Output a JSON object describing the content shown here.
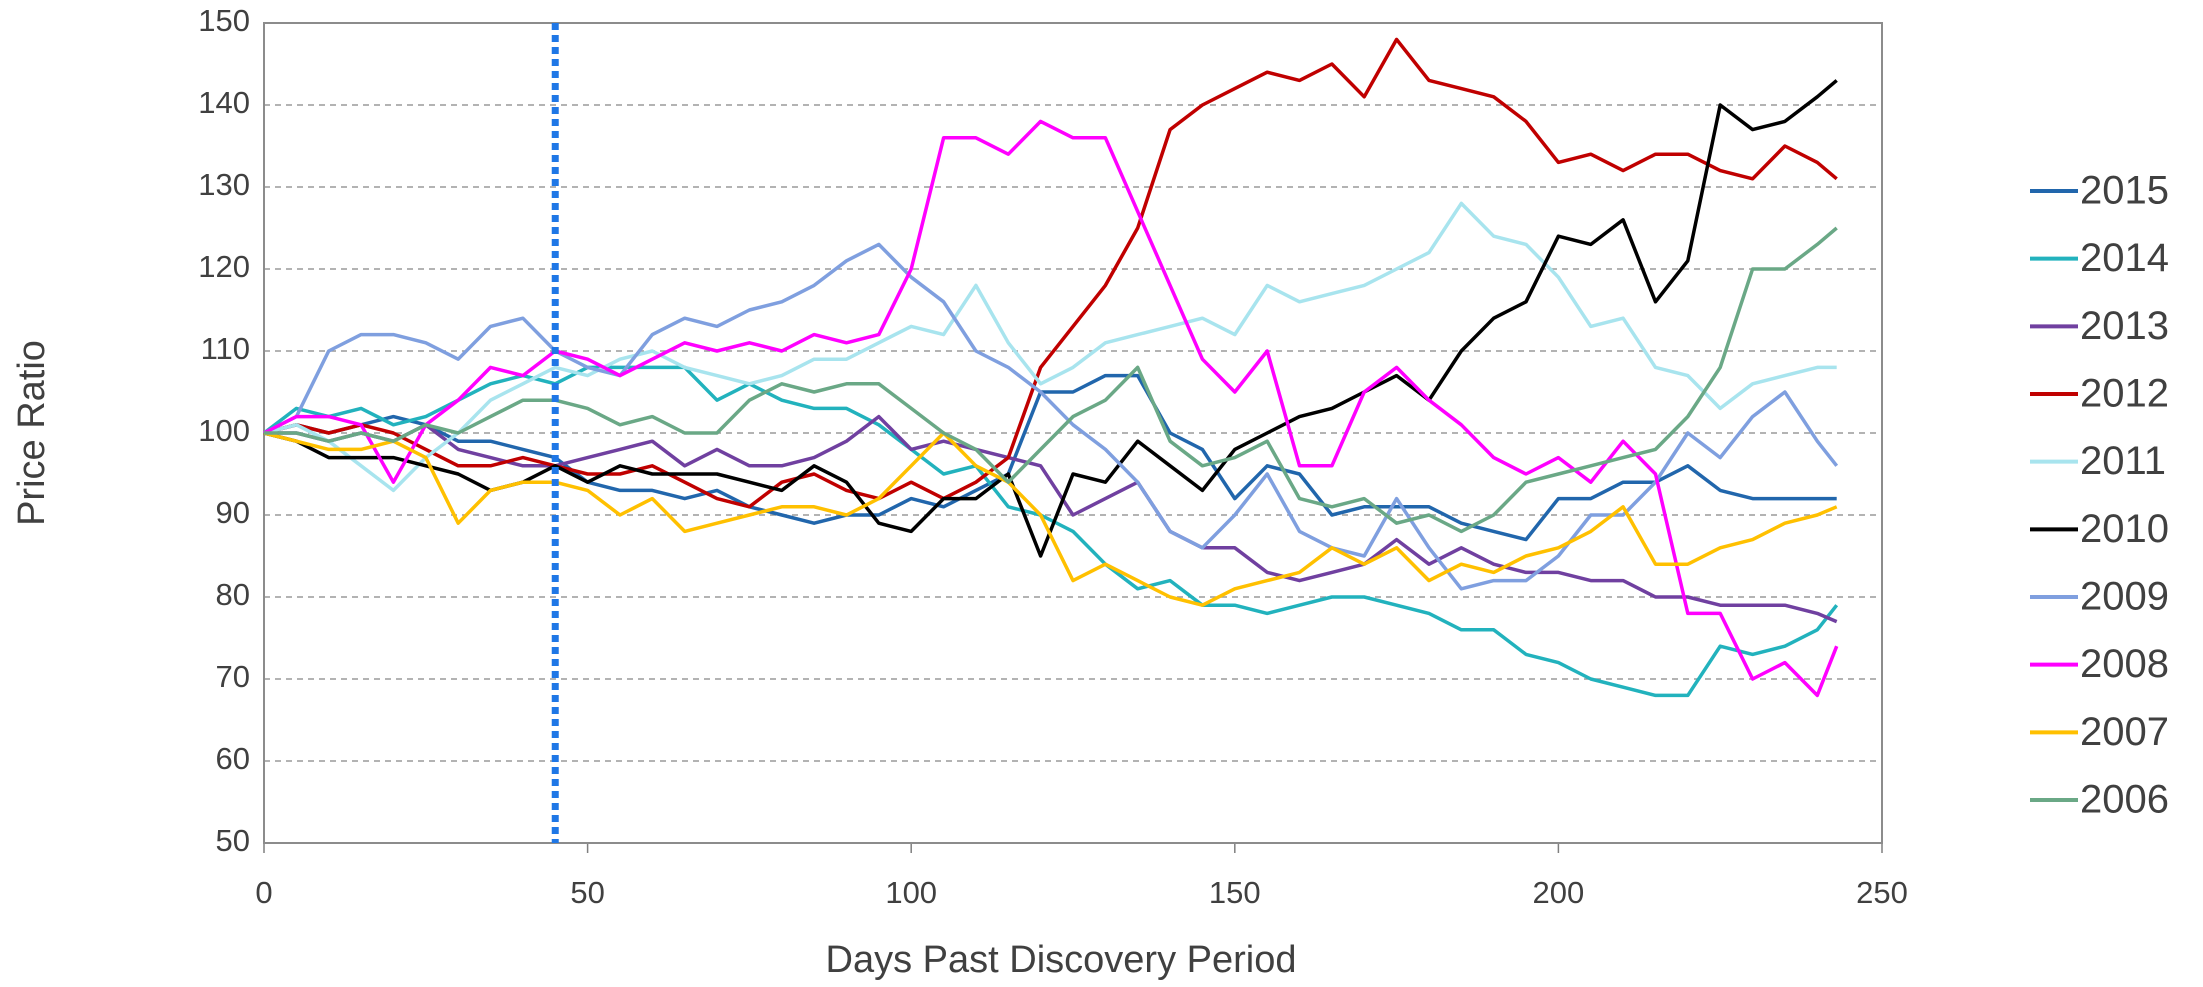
{
  "chart_data": {
    "type": "line",
    "xlabel": "Days Past Discovery Period",
    "ylabel": "Price Ratio",
    "xlim": [
      0,
      250
    ],
    "xticks": [
      0,
      50,
      100,
      150,
      200,
      250
    ],
    "ylim": [
      50,
      150
    ],
    "yticks": [
      50,
      60,
      70,
      80,
      90,
      100,
      110,
      120,
      130,
      140,
      150
    ],
    "grid": true,
    "legend": "right",
    "vline": {
      "x": 45,
      "color": "#1f77e6"
    },
    "x": [
      0,
      5,
      10,
      15,
      20,
      25,
      30,
      35,
      40,
      45,
      50,
      55,
      60,
      65,
      70,
      75,
      80,
      85,
      90,
      95,
      100,
      105,
      110,
      115,
      120,
      125,
      130,
      135,
      140,
      145,
      150,
      155,
      160,
      165,
      170,
      175,
      180,
      185,
      190,
      195,
      200,
      205,
      210,
      215,
      220,
      225,
      230,
      235,
      240,
      243
    ],
    "series": [
      {
        "name": "2015",
        "color": "#2166ac",
        "values": [
          100,
          101,
          100,
          101,
          102,
          101,
          99,
          99,
          98,
          97,
          94,
          93,
          93,
          92,
          93,
          91,
          90,
          89,
          90,
          90,
          92,
          91,
          93,
          95,
          105,
          105,
          107,
          107,
          100,
          98,
          92,
          96,
          95,
          90,
          91,
          91,
          91,
          89,
          88,
          87,
          92,
          92,
          94,
          94,
          96,
          93,
          92,
          92,
          92,
          92
        ]
      },
      {
        "name": "2014",
        "color": "#22b2bd",
        "values": [
          100,
          103,
          102,
          103,
          101,
          102,
          104,
          106,
          107,
          106,
          108,
          108,
          108,
          108,
          104,
          106,
          104,
          103,
          103,
          101,
          98,
          95,
          96,
          91,
          90,
          88,
          84,
          81,
          82,
          79,
          79,
          78,
          79,
          80,
          80,
          79,
          78,
          76,
          76,
          73,
          72,
          70,
          69,
          68,
          68,
          74,
          73,
          74,
          76,
          79
        ]
      },
      {
        "name": "2013",
        "color": "#7040a0",
        "values": [
          100,
          100,
          99,
          100,
          99,
          101,
          98,
          97,
          96,
          96,
          97,
          98,
          99,
          96,
          98,
          96,
          96,
          97,
          99,
          102,
          98,
          99,
          98,
          97,
          96,
          90,
          92,
          94,
          88,
          86,
          86,
          83,
          82,
          83,
          84,
          87,
          84,
          86,
          84,
          83,
          83,
          82,
          82,
          80,
          80,
          79,
          79,
          79,
          78,
          77
        ]
      },
      {
        "name": "2012",
        "color": "#c00000",
        "values": [
          100,
          101,
          100,
          101,
          100,
          98,
          96,
          96,
          97,
          96,
          95,
          95,
          96,
          94,
          92,
          91,
          94,
          95,
          93,
          92,
          94,
          92,
          94,
          97,
          108,
          113,
          118,
          125,
          137,
          140,
          142,
          144,
          143,
          145,
          141,
          148,
          143,
          142,
          141,
          138,
          133,
          134,
          132,
          134,
          134,
          132,
          131,
          135,
          133,
          131
        ]
      },
      {
        "name": "2011",
        "color": "#a8e4ee",
        "values": [
          100,
          101,
          99,
          96,
          93,
          97,
          100,
          104,
          106,
          108,
          107,
          109,
          110,
          108,
          107,
          106,
          107,
          109,
          109,
          111,
          113,
          112,
          118,
          111,
          106,
          108,
          111,
          112,
          113,
          114,
          112,
          118,
          116,
          117,
          118,
          120,
          122,
          128,
          124,
          123,
          119,
          113,
          114,
          108,
          107,
          103,
          106,
          107,
          108,
          108
        ]
      },
      {
        "name": "2010",
        "color": "#000000",
        "values": [
          100,
          99,
          97,
          97,
          97,
          96,
          95,
          93,
          94,
          96,
          94,
          96,
          95,
          95,
          95,
          94,
          93,
          96,
          94,
          89,
          88,
          92,
          92,
          95,
          85,
          95,
          94,
          99,
          96,
          93,
          98,
          100,
          102,
          103,
          105,
          107,
          104,
          110,
          114,
          116,
          124,
          123,
          126,
          116,
          121,
          140,
          137,
          138,
          141,
          143
        ]
      },
      {
        "name": "2009",
        "color": "#7f9fdf",
        "values": [
          100,
          102,
          110,
          112,
          112,
          111,
          109,
          113,
          114,
          110,
          108,
          107,
          112,
          114,
          113,
          115,
          116,
          118,
          121,
          123,
          119,
          116,
          110,
          108,
          105,
          101,
          98,
          94,
          88,
          86,
          90,
          95,
          88,
          86,
          85,
          92,
          86,
          81,
          82,
          82,
          85,
          90,
          90,
          94,
          100,
          97,
          102,
          105,
          99,
          96
        ]
      },
      {
        "name": "2008",
        "color": "#ff00ff",
        "values": [
          100,
          102,
          102,
          101,
          94,
          101,
          104,
          108,
          107,
          110,
          109,
          107,
          109,
          111,
          110,
          111,
          110,
          112,
          111,
          112,
          120,
          136,
          136,
          134,
          138,
          136,
          136,
          127,
          118,
          109,
          105,
          110,
          96,
          96,
          105,
          108,
          104,
          101,
          97,
          95,
          97,
          94,
          99,
          95,
          78,
          78,
          70,
          72,
          68,
          74
        ]
      },
      {
        "name": "2007",
        "color": "#ffc000",
        "values": [
          100,
          99,
          98,
          98,
          99,
          97,
          89,
          93,
          94,
          94,
          93,
          90,
          92,
          88,
          89,
          90,
          91,
          91,
          90,
          92,
          96,
          100,
          96,
          94,
          90,
          82,
          84,
          82,
          80,
          79,
          81,
          82,
          83,
          86,
          84,
          86,
          82,
          84,
          83,
          85,
          86,
          88,
          91,
          84,
          84,
          86,
          87,
          89,
          90,
          91
        ]
      },
      {
        "name": "2006",
        "color": "#6aa886",
        "values": [
          100,
          100,
          99,
          100,
          99,
          101,
          100,
          102,
          104,
          104,
          103,
          101,
          102,
          100,
          100,
          104,
          106,
          105,
          106,
          106,
          103,
          100,
          98,
          94,
          98,
          102,
          104,
          108,
          99,
          96,
          97,
          99,
          92,
          91,
          92,
          89,
          90,
          88,
          90,
          94,
          95,
          96,
          97,
          98,
          102,
          108,
          120,
          120,
          123,
          125
        ]
      }
    ]
  }
}
